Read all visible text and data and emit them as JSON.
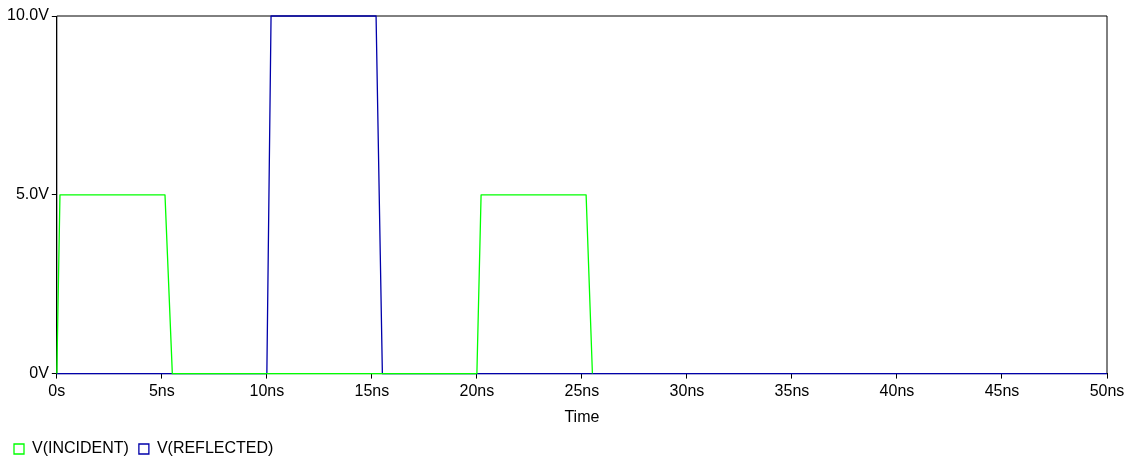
{
  "chart_data": {
    "type": "line",
    "xlabel": "Time",
    "xlim": [
      0,
      50
    ],
    "xticks": [
      {
        "value": 0,
        "label": "0s"
      },
      {
        "value": 5,
        "label": "5ns"
      },
      {
        "value": 10,
        "label": "10ns"
      },
      {
        "value": 15,
        "label": "15ns"
      },
      {
        "value": 20,
        "label": "20ns"
      },
      {
        "value": 25,
        "label": "25ns"
      },
      {
        "value": 30,
        "label": "30ns"
      },
      {
        "value": 35,
        "label": "35ns"
      },
      {
        "value": 40,
        "label": "40ns"
      },
      {
        "value": 45,
        "label": "45ns"
      },
      {
        "value": 50,
        "label": "50ns"
      }
    ],
    "ylim": [
      0,
      10
    ],
    "yticks": [
      {
        "value": 0,
        "label": "0V"
      },
      {
        "value": 5,
        "label": "5.0V"
      },
      {
        "value": 10,
        "label": "10.0V"
      }
    ],
    "grid": false,
    "legend": "bottom left",
    "marker": "none",
    "line_style": "solid",
    "series": [
      {
        "name": "V(INCIDENT)",
        "color": "#00ff00",
        "x": [
          0,
          0.15,
          5.15,
          5.5,
          20,
          20.2,
          25.2,
          25.5
        ],
        "values": [
          0,
          5,
          5,
          0,
          0,
          5,
          5,
          0
        ]
      },
      {
        "name": "V(REFLECTED)",
        "color": "#0000aa",
        "x": [
          0,
          10,
          10.2,
          15.2,
          15.5,
          50
        ],
        "values": [
          0,
          0,
          10,
          10,
          0,
          0
        ]
      }
    ]
  }
}
